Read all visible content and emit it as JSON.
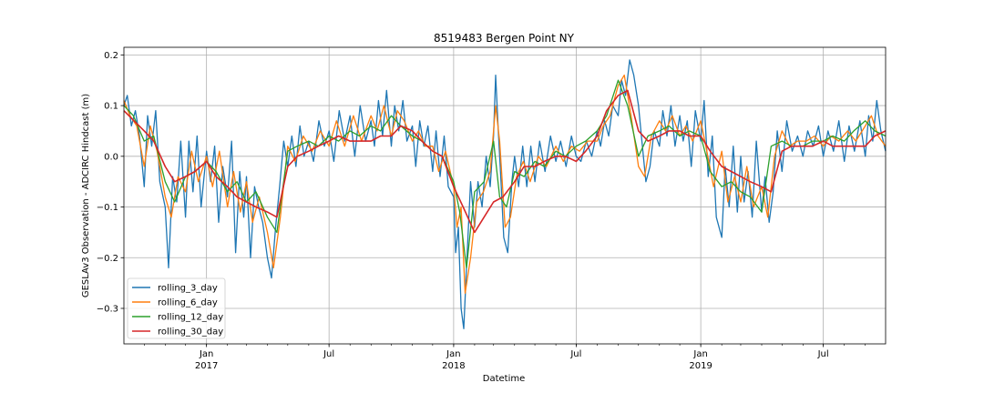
{
  "chart_data": {
    "type": "line",
    "title": "8519483 Bergen Point NY",
    "xlabel": "Datetime",
    "ylabel": "GESLAv3 Observation - ADCIRC Hindcast (m)",
    "xlim": [
      "2016-09-01",
      "2019-10-01"
    ],
    "ylim": [
      -0.37,
      0.215
    ],
    "grid": true,
    "legend_position": "lower left",
    "x_ticks": [
      {
        "date": "2017-01-01",
        "label": "Jan",
        "sublabel": "2017"
      },
      {
        "date": "2017-07-01",
        "label": "Jul",
        "sublabel": ""
      },
      {
        "date": "2018-01-01",
        "label": "Jan",
        "sublabel": "2018"
      },
      {
        "date": "2018-07-01",
        "label": "Jul",
        "sublabel": ""
      },
      {
        "date": "2019-01-01",
        "label": "Jan",
        "sublabel": "2019"
      },
      {
        "date": "2019-07-01",
        "label": "Jul",
        "sublabel": ""
      }
    ],
    "y_ticks": [
      -0.3,
      -0.2,
      -0.1,
      0.0,
      0.1,
      0.2
    ],
    "y_tick_labels": [
      "−0.3",
      "−0.2",
      "−0.1",
      "0.0",
      "0.1",
      "0.2"
    ],
    "series": [
      {
        "name": "rolling_3_day",
        "color": "#1f77b4",
        "x": [
          "2016-09-01",
          "2016-09-06",
          "2016-09-12",
          "2016-09-18",
          "2016-09-24",
          "2016-10-01",
          "2016-10-06",
          "2016-10-12",
          "2016-10-18",
          "2016-10-24",
          "2016-11-01",
          "2016-11-06",
          "2016-11-12",
          "2016-11-18",
          "2016-11-24",
          "2016-12-01",
          "2016-12-06",
          "2016-12-12",
          "2016-12-18",
          "2016-12-24",
          "2017-01-01",
          "2017-01-07",
          "2017-01-13",
          "2017-01-19",
          "2017-01-25",
          "2017-02-01",
          "2017-02-07",
          "2017-02-13",
          "2017-02-19",
          "2017-02-25",
          "2017-03-01",
          "2017-03-07",
          "2017-03-13",
          "2017-03-19",
          "2017-03-25",
          "2017-04-01",
          "2017-04-07",
          "2017-04-13",
          "2017-04-19",
          "2017-04-25",
          "2017-05-01",
          "2017-05-07",
          "2017-05-13",
          "2017-05-19",
          "2017-05-25",
          "2017-06-01",
          "2017-06-08",
          "2017-06-16",
          "2017-06-24",
          "2017-07-01",
          "2017-07-08",
          "2017-07-16",
          "2017-07-24",
          "2017-08-01",
          "2017-08-08",
          "2017-08-16",
          "2017-08-24",
          "2017-09-01",
          "2017-09-06",
          "2017-09-12",
          "2017-09-18",
          "2017-09-24",
          "2017-10-01",
          "2017-10-06",
          "2017-10-12",
          "2017-10-18",
          "2017-10-24",
          "2017-11-01",
          "2017-11-06",
          "2017-11-12",
          "2017-11-18",
          "2017-11-24",
          "2017-12-01",
          "2017-12-06",
          "2017-12-12",
          "2017-12-18",
          "2017-12-24",
          "2018-01-01",
          "2018-01-04",
          "2018-01-08",
          "2018-01-12",
          "2018-01-16",
          "2018-01-20",
          "2018-01-26",
          "2018-02-01",
          "2018-02-06",
          "2018-02-12",
          "2018-02-18",
          "2018-02-24",
          "2018-03-01",
          "2018-03-04",
          "2018-03-08",
          "2018-03-12",
          "2018-03-16",
          "2018-03-22",
          "2018-03-28",
          "2018-04-01",
          "2018-04-07",
          "2018-04-13",
          "2018-04-19",
          "2018-04-25",
          "2018-05-01",
          "2018-05-08",
          "2018-05-16",
          "2018-05-24",
          "2018-06-01",
          "2018-06-08",
          "2018-06-16",
          "2018-06-24",
          "2018-07-01",
          "2018-07-08",
          "2018-07-16",
          "2018-07-24",
          "2018-08-01",
          "2018-08-06",
          "2018-08-12",
          "2018-08-18",
          "2018-08-24",
          "2018-09-01",
          "2018-09-06",
          "2018-09-12",
          "2018-09-18",
          "2018-09-24",
          "2018-10-01",
          "2018-10-06",
          "2018-10-12",
          "2018-10-18",
          "2018-10-24",
          "2018-11-01",
          "2018-11-06",
          "2018-11-12",
          "2018-11-18",
          "2018-11-24",
          "2018-12-01",
          "2018-12-06",
          "2018-12-12",
          "2018-12-18",
          "2018-12-24",
          "2019-01-01",
          "2019-01-06",
          "2019-01-12",
          "2019-01-18",
          "2019-01-24",
          "2019-02-01",
          "2019-02-06",
          "2019-02-12",
          "2019-02-18",
          "2019-02-24",
          "2019-03-01",
          "2019-03-06",
          "2019-03-12",
          "2019-03-18",
          "2019-03-24",
          "2019-04-01",
          "2019-04-06",
          "2019-04-12",
          "2019-04-18",
          "2019-04-24",
          "2019-05-01",
          "2019-05-08",
          "2019-05-16",
          "2019-05-24",
          "2019-06-01",
          "2019-06-08",
          "2019-06-16",
          "2019-06-24",
          "2019-07-01",
          "2019-07-08",
          "2019-07-16",
          "2019-07-24",
          "2019-08-01",
          "2019-08-08",
          "2019-08-16",
          "2019-08-24",
          "2019-09-01",
          "2019-09-06",
          "2019-09-12",
          "2019-09-18",
          "2019-09-24",
          "2019-10-01"
        ],
        "values": [
          0.1,
          0.12,
          0.06,
          0.09,
          0.04,
          -0.06,
          0.08,
          0.02,
          0.09,
          -0.05,
          -0.1,
          -0.22,
          -0.04,
          -0.09,
          0.03,
          -0.12,
          0.03,
          -0.07,
          0.04,
          -0.1,
          0.01,
          -0.05,
          0.02,
          -0.13,
          -0.02,
          -0.08,
          0.03,
          -0.19,
          -0.03,
          -0.12,
          -0.04,
          -0.2,
          -0.06,
          -0.1,
          -0.13,
          -0.2,
          -0.24,
          -0.14,
          -0.06,
          0.03,
          -0.02,
          0.04,
          -0.02,
          0.06,
          0.0,
          0.03,
          -0.01,
          0.07,
          0.02,
          0.05,
          -0.01,
          0.09,
          0.03,
          0.08,
          0.0,
          0.1,
          0.03,
          0.07,
          0.02,
          0.11,
          0.04,
          0.13,
          0.02,
          0.1,
          0.05,
          0.11,
          0.03,
          0.06,
          -0.02,
          0.07,
          0.02,
          0.06,
          -0.03,
          0.05,
          -0.04,
          0.04,
          -0.06,
          -0.08,
          -0.19,
          -0.14,
          -0.3,
          -0.34,
          -0.22,
          -0.05,
          -0.14,
          -0.05,
          -0.1,
          0.0,
          -0.06,
          0.04,
          0.16,
          0.05,
          -0.05,
          -0.16,
          -0.19,
          -0.05,
          0.0,
          -0.06,
          0.02,
          -0.06,
          0.02,
          -0.05,
          0.03,
          -0.03,
          0.04,
          -0.01,
          0.03,
          -0.02,
          0.04,
          0.0,
          -0.01,
          0.03,
          0.0,
          0.05,
          0.02,
          0.07,
          0.04,
          0.1,
          0.08,
          0.15,
          0.12,
          0.19,
          0.16,
          0.1,
          0.03,
          -0.05,
          -0.02,
          0.05,
          0.02,
          0.09,
          0.04,
          0.1,
          0.02,
          0.08,
          0.03,
          0.07,
          -0.02,
          0.09,
          0.03,
          0.11,
          -0.04,
          0.04,
          -0.12,
          -0.16,
          -0.02,
          -0.1,
          0.02,
          -0.11,
          0.0,
          -0.09,
          -0.03,
          -0.12,
          0.03,
          -0.11,
          -0.04,
          -0.13,
          -0.07,
          0.05,
          -0.03,
          0.07,
          0.01,
          0.04,
          0.0,
          0.05,
          0.02,
          0.06,
          0.0,
          0.05,
          0.01,
          0.07,
          -0.01,
          0.06,
          0.01,
          0.07,
          0.0,
          0.08,
          0.03,
          0.11,
          0.05,
          0.01
        ]
      },
      {
        "name": "rolling_6_day",
        "color": "#ff7f0e",
        "x": [
          "2016-09-01",
          "2016-09-10",
          "2016-09-20",
          "2016-10-01",
          "2016-10-10",
          "2016-10-20",
          "2016-11-01",
          "2016-11-10",
          "2016-11-20",
          "2016-12-01",
          "2016-12-10",
          "2016-12-20",
          "2017-01-01",
          "2017-01-10",
          "2017-01-20",
          "2017-02-01",
          "2017-02-10",
          "2017-02-20",
          "2017-03-01",
          "2017-03-10",
          "2017-03-20",
          "2017-04-01",
          "2017-04-10",
          "2017-04-20",
          "2017-05-01",
          "2017-05-12",
          "2017-05-24",
          "2017-06-06",
          "2017-06-18",
          "2017-07-01",
          "2017-07-12",
          "2017-07-24",
          "2017-08-06",
          "2017-08-18",
          "2017-09-01",
          "2017-09-10",
          "2017-09-20",
          "2017-10-01",
          "2017-10-10",
          "2017-10-20",
          "2017-11-01",
          "2017-11-10",
          "2017-11-20",
          "2017-12-01",
          "2017-12-10",
          "2017-12-20",
          "2018-01-01",
          "2018-01-06",
          "2018-01-12",
          "2018-01-18",
          "2018-01-26",
          "2018-02-04",
          "2018-02-14",
          "2018-02-24",
          "2018-03-04",
          "2018-03-10",
          "2018-03-18",
          "2018-03-26",
          "2018-04-04",
          "2018-04-14",
          "2018-04-24",
          "2018-05-06",
          "2018-05-18",
          "2018-06-01",
          "2018-06-12",
          "2018-06-24",
          "2018-07-06",
          "2018-07-18",
          "2018-08-01",
          "2018-08-10",
          "2018-08-20",
          "2018-09-01",
          "2018-09-10",
          "2018-09-20",
          "2018-10-01",
          "2018-10-10",
          "2018-10-20",
          "2018-11-01",
          "2018-11-10",
          "2018-11-20",
          "2018-12-01",
          "2018-12-10",
          "2018-12-20",
          "2019-01-01",
          "2019-01-10",
          "2019-01-20",
          "2019-02-01",
          "2019-02-10",
          "2019-02-20",
          "2019-03-01",
          "2019-03-10",
          "2019-03-20",
          "2019-04-01",
          "2019-04-10",
          "2019-04-20",
          "2019-05-01",
          "2019-05-12",
          "2019-05-24",
          "2019-06-06",
          "2019-06-18",
          "2019-07-01",
          "2019-07-12",
          "2019-07-24",
          "2019-08-06",
          "2019-08-18",
          "2019-09-01",
          "2019-09-10",
          "2019-09-20",
          "2019-10-01"
        ],
        "values": [
          0.11,
          0.08,
          0.06,
          -0.02,
          0.06,
          0.01,
          -0.08,
          -0.12,
          -0.04,
          -0.07,
          0.01,
          -0.05,
          0.0,
          -0.06,
          0.01,
          -0.1,
          -0.03,
          -0.11,
          -0.05,
          -0.13,
          -0.08,
          -0.15,
          -0.22,
          -0.12,
          0.02,
          -0.01,
          0.04,
          0.01,
          0.05,
          0.02,
          0.07,
          0.02,
          0.08,
          0.03,
          0.08,
          0.05,
          0.1,
          0.04,
          0.09,
          0.07,
          0.03,
          0.05,
          0.02,
          0.02,
          -0.03,
          0.01,
          -0.06,
          -0.14,
          -0.1,
          -0.27,
          -0.2,
          -0.09,
          -0.07,
          -0.03,
          0.1,
          0.03,
          -0.14,
          -0.12,
          -0.04,
          -0.01,
          -0.05,
          0.0,
          -0.02,
          0.02,
          -0.01,
          0.02,
          0.01,
          0.03,
          0.03,
          0.06,
          0.08,
          0.14,
          0.16,
          0.08,
          -0.02,
          -0.04,
          0.04,
          0.07,
          0.05,
          0.08,
          0.04,
          0.06,
          0.03,
          0.07,
          0.01,
          -0.06,
          0.01,
          -0.09,
          -0.04,
          -0.09,
          -0.02,
          -0.1,
          -0.06,
          -0.12,
          0.0,
          0.05,
          0.02,
          0.03,
          0.03,
          0.04,
          0.02,
          0.04,
          0.03,
          0.05,
          0.03,
          0.06,
          0.08,
          0.04,
          0.02
        ]
      },
      {
        "name": "rolling_12_day",
        "color": "#2ca02c",
        "x": [
          "2016-09-01",
          "2016-09-15",
          "2016-10-01",
          "2016-10-15",
          "2016-11-01",
          "2016-11-15",
          "2016-12-01",
          "2016-12-15",
          "2017-01-01",
          "2017-01-15",
          "2017-02-01",
          "2017-02-15",
          "2017-03-01",
          "2017-03-15",
          "2017-04-01",
          "2017-04-15",
          "2017-05-01",
          "2017-05-15",
          "2017-06-01",
          "2017-06-15",
          "2017-07-01",
          "2017-07-15",
          "2017-08-01",
          "2017-08-15",
          "2017-09-01",
          "2017-09-15",
          "2017-10-01",
          "2017-10-15",
          "2017-11-01",
          "2017-11-15",
          "2017-12-01",
          "2017-12-15",
          "2018-01-01",
          "2018-01-10",
          "2018-01-20",
          "2018-02-01",
          "2018-02-15",
          "2018-03-01",
          "2018-03-10",
          "2018-03-20",
          "2018-04-01",
          "2018-04-15",
          "2018-05-01",
          "2018-05-15",
          "2018-06-01",
          "2018-06-15",
          "2018-07-01",
          "2018-07-15",
          "2018-08-01",
          "2018-08-15",
          "2018-09-01",
          "2018-09-15",
          "2018-10-01",
          "2018-10-15",
          "2018-11-01",
          "2018-11-15",
          "2018-12-01",
          "2018-12-15",
          "2019-01-01",
          "2019-01-15",
          "2019-02-01",
          "2019-02-15",
          "2019-03-01",
          "2019-03-15",
          "2019-04-01",
          "2019-04-15",
          "2019-05-01",
          "2019-05-15",
          "2019-06-01",
          "2019-06-15",
          "2019-07-01",
          "2019-07-15",
          "2019-08-01",
          "2019-08-15",
          "2019-09-01",
          "2019-09-15",
          "2019-10-01"
        ],
        "values": [
          0.1,
          0.08,
          0.03,
          0.04,
          -0.05,
          -0.09,
          -0.04,
          -0.03,
          -0.01,
          -0.03,
          -0.07,
          -0.05,
          -0.09,
          -0.07,
          -0.12,
          -0.15,
          0.01,
          0.02,
          0.03,
          0.02,
          0.04,
          0.03,
          0.05,
          0.04,
          0.06,
          0.05,
          0.08,
          0.06,
          0.04,
          0.03,
          0.01,
          0.0,
          -0.05,
          -0.11,
          -0.22,
          -0.07,
          -0.05,
          0.03,
          -0.08,
          -0.1,
          -0.03,
          -0.04,
          -0.01,
          -0.02,
          0.01,
          0.0,
          0.02,
          0.03,
          0.05,
          0.08,
          0.15,
          0.1,
          0.0,
          0.04,
          0.05,
          0.06,
          0.04,
          0.05,
          0.04,
          -0.03,
          -0.06,
          -0.05,
          -0.07,
          -0.08,
          -0.11,
          0.02,
          0.03,
          0.02,
          0.02,
          0.03,
          0.03,
          0.04,
          0.03,
          0.05,
          0.07,
          0.05,
          0.04
        ]
      },
      {
        "name": "rolling_30_day",
        "color": "#d62728",
        "x": [
          "2016-09-01",
          "2016-10-01",
          "2016-10-15",
          "2016-11-01",
          "2016-11-15",
          "2016-12-01",
          "2016-12-15",
          "2017-01-01",
          "2017-01-15",
          "2017-02-01",
          "2017-02-15",
          "2017-03-01",
          "2017-03-15",
          "2017-04-01",
          "2017-04-15",
          "2017-05-01",
          "2017-05-15",
          "2017-06-01",
          "2017-06-15",
          "2017-07-01",
          "2017-07-15",
          "2017-08-01",
          "2017-08-15",
          "2017-09-01",
          "2017-09-15",
          "2017-10-01",
          "2017-10-15",
          "2017-11-01",
          "2017-11-15",
          "2017-12-01",
          "2017-12-15",
          "2018-01-01",
          "2018-01-15",
          "2018-02-01",
          "2018-02-15",
          "2018-03-01",
          "2018-03-15",
          "2018-04-01",
          "2018-04-15",
          "2018-05-01",
          "2018-05-15",
          "2018-06-01",
          "2018-06-15",
          "2018-07-01",
          "2018-07-15",
          "2018-08-01",
          "2018-08-15",
          "2018-09-01",
          "2018-09-15",
          "2018-10-01",
          "2018-10-15",
          "2018-11-01",
          "2018-11-15",
          "2018-12-01",
          "2018-12-15",
          "2019-01-01",
          "2019-01-15",
          "2019-02-01",
          "2019-02-15",
          "2019-03-01",
          "2019-03-15",
          "2019-04-01",
          "2019-04-15",
          "2019-05-01",
          "2019-05-15",
          "2019-06-01",
          "2019-06-15",
          "2019-07-01",
          "2019-07-15",
          "2019-08-01",
          "2019-08-15",
          "2019-09-01",
          "2019-09-15",
          "2019-10-01"
        ],
        "values": [
          0.09,
          0.05,
          0.03,
          -0.02,
          -0.05,
          -0.04,
          -0.03,
          -0.01,
          -0.04,
          -0.06,
          -0.08,
          -0.09,
          -0.1,
          -0.11,
          -0.12,
          -0.02,
          0.0,
          0.01,
          0.02,
          0.03,
          0.04,
          0.03,
          0.03,
          0.03,
          0.04,
          0.04,
          0.06,
          0.05,
          0.03,
          0.01,
          0.0,
          -0.06,
          -0.1,
          -0.15,
          -0.12,
          -0.09,
          -0.08,
          -0.05,
          -0.02,
          -0.02,
          -0.01,
          0.0,
          0.0,
          -0.01,
          0.01,
          0.04,
          0.09,
          0.12,
          0.13,
          0.05,
          0.03,
          0.04,
          0.05,
          0.05,
          0.04,
          0.04,
          0.01,
          -0.02,
          -0.03,
          -0.04,
          -0.05,
          -0.06,
          -0.07,
          0.01,
          0.02,
          0.02,
          0.02,
          0.03,
          0.02,
          0.02,
          0.02,
          0.02,
          0.04,
          0.05
        ]
      }
    ]
  }
}
